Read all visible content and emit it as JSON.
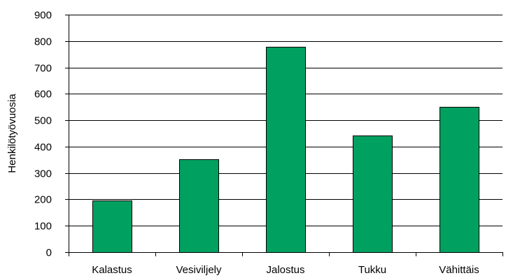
{
  "chart_data": {
    "type": "bar",
    "title": "",
    "xlabel": "",
    "ylabel": "Henkilötyövuosia",
    "categories": [
      "Kalastus",
      "Vesiviljely",
      "Jalostus",
      "Tukku",
      "Vähittäis"
    ],
    "values": [
      195,
      353,
      777,
      442,
      550
    ],
    "ylim": [
      0,
      900
    ],
    "yticks": [
      0,
      100,
      200,
      300,
      400,
      500,
      600,
      700,
      800,
      900
    ],
    "grid": true,
    "legend": "none",
    "bar_color": "#00a060"
  }
}
